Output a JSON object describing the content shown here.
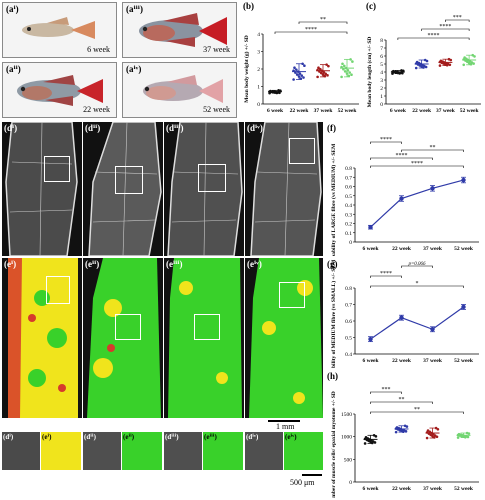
{
  "fish_panels": [
    {
      "label": "(aⁱ)",
      "age": "6 week"
    },
    {
      "label": "(aⁱⁱⁱ)",
      "age": "37 week"
    },
    {
      "label": "(aⁱⁱ)",
      "age": "22 week"
    },
    {
      "label": "(aⁱᵛ)",
      "age": "52 week"
    }
  ],
  "micro_d": [
    "(dⁱ)",
    "(dⁱⁱ)",
    "(dⁱⁱⁱ)",
    "(dⁱᵛ)"
  ],
  "micro_e": [
    "(eⁱ)",
    "(eⁱⁱ)",
    "(eⁱⁱⁱ)",
    "(eⁱᵛ)"
  ],
  "zooms": [
    "(dⁱ)",
    "(eⁱ)",
    "(dⁱⁱ)",
    "(eⁱⁱ)",
    "(dⁱⁱⁱ)",
    "(eⁱⁱⁱ)",
    "(dⁱᵛ)",
    "(eⁱᵛ)"
  ],
  "scale_1mm": "1 mm",
  "scale_500": "500 μm",
  "colors": {
    "green": "#39d12a",
    "yellow": "#f2ea1a",
    "red": "#e0322a",
    "blue": "#2f3aa8",
    "darkred": "#a31c1c",
    "lightgreen": "#72d572"
  },
  "chart_data": [
    {
      "id": "b",
      "type": "scatter",
      "label": "(b)",
      "ylabel": "Mean body weight (g) +/- SD",
      "categories": [
        "6 week",
        "22 week",
        "37 week",
        "52 week"
      ],
      "ylim": [
        0,
        4
      ],
      "yticks": [
        0,
        1,
        2,
        3,
        4
      ],
      "means": [
        0.7,
        1.85,
        1.9,
        2.05
      ],
      "sd": [
        0.08,
        0.45,
        0.35,
        0.5
      ],
      "significance": [
        {
          "from": 0,
          "to": 3,
          "text": "****"
        },
        {
          "from": 1,
          "to": 3,
          "text": "**"
        }
      ]
    },
    {
      "id": "c",
      "type": "scatter",
      "label": "(c)",
      "ylabel": "Mean body length (cm) +/- SD",
      "categories": [
        "6 week",
        "22 week",
        "37 week",
        "52 week"
      ],
      "ylim": [
        0,
        8
      ],
      "yticks": [
        0,
        1,
        2,
        3,
        4,
        5,
        6,
        7,
        8
      ],
      "means": [
        4.0,
        5.0,
        5.2,
        5.5
      ],
      "sd": [
        0.2,
        0.5,
        0.4,
        0.6
      ],
      "significance": [
        {
          "from": 0,
          "to": 3,
          "text": "****"
        },
        {
          "from": 1,
          "to": 3,
          "text": "****"
        },
        {
          "from": 2,
          "to": 3,
          "text": "***"
        }
      ]
    },
    {
      "id": "f",
      "type": "line",
      "label": "(f)",
      "ylabel": "Probability of LARGE fibre (vs MEDIUM) +/- SEM",
      "categories": [
        "6 week",
        "22 week",
        "37 week",
        "52 week"
      ],
      "ylim": [
        0,
        0.8
      ],
      "yticks": [
        0,
        0.1,
        0.2,
        0.3,
        0.4,
        0.5,
        0.6,
        0.7,
        0.8
      ],
      "values": [
        0.16,
        0.47,
        0.58,
        0.67
      ],
      "sem": [
        0.02,
        0.03,
        0.03,
        0.03
      ],
      "significance": [
        {
          "from": 0,
          "to": 3,
          "text": "****"
        },
        {
          "from": 0,
          "to": 2,
          "text": "****"
        },
        {
          "from": 1,
          "to": 3,
          "text": "**"
        },
        {
          "from": 0,
          "to": 1,
          "text": "****"
        }
      ]
    },
    {
      "id": "g",
      "type": "line",
      "label": "(g)",
      "ylabel": "Probability of MEDIUM fibre (vs SMALL) +/- SEM",
      "categories": [
        "6 week",
        "22 week",
        "37 week",
        "52 week"
      ],
      "ylim": [
        0.4,
        0.8
      ],
      "yticks": [
        0.4,
        0.5,
        0.6,
        0.7,
        0.8
      ],
      "values": [
        0.49,
        0.62,
        0.55,
        0.685
      ],
      "sem": [
        0.015,
        0.015,
        0.015,
        0.015
      ],
      "significance": [
        {
          "from": 0,
          "to": 3,
          "text": "*"
        },
        {
          "from": 0,
          "to": 1,
          "text": "****"
        },
        {
          "from": 1,
          "to": 2,
          "text": "p=0.066"
        }
      ]
    },
    {
      "id": "h",
      "type": "scatter",
      "label": "(h)",
      "ylabel": "Number of muscle cells/ epaxial myotome +/- SD",
      "categories": [
        "6 week",
        "22 week",
        "37 week",
        "52 week"
      ],
      "ylim": [
        0,
        1500
      ],
      "yticks": [
        0,
        500,
        1000,
        1500
      ],
      "means": [
        940,
        1170,
        1080,
        1030
      ],
      "sd": [
        90,
        70,
        110,
        50
      ],
      "significance": [
        {
          "from": 0,
          "to": 3,
          "text": "**"
        },
        {
          "from": 0,
          "to": 2,
          "text": "**"
        },
        {
          "from": 0,
          "to": 1,
          "text": "***"
        }
      ]
    }
  ]
}
